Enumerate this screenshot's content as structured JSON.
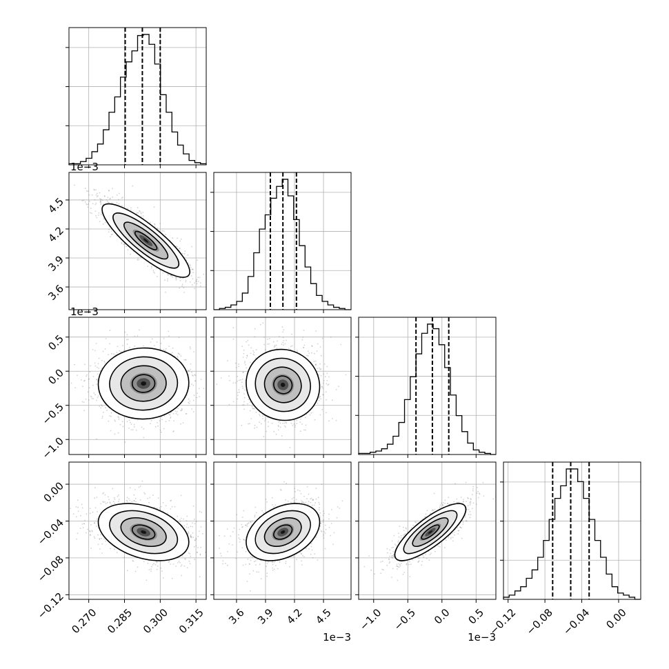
{
  "chart_data": {
    "type": "corner",
    "grid": true,
    "parameters": [
      {
        "index": 0,
        "ticks": [
          0.27,
          0.285,
          0.3,
          0.315
        ],
        "tick_labels": [
          "0.270",
          "0.285",
          "0.300",
          "0.315"
        ],
        "range": [
          0.2617,
          0.3193
        ],
        "offset_text": "",
        "label": ""
      },
      {
        "index": 1,
        "ticks": [
          3.6,
          3.9,
          4.2,
          4.5
        ],
        "tick_labels": [
          "3.6",
          "3.9",
          "4.2",
          "4.5"
        ],
        "range": [
          3.365,
          4.785
        ],
        "offset_text": "1e−3",
        "label": ""
      },
      {
        "index": 2,
        "ticks": [
          -1.0,
          -0.5,
          0.0,
          0.5
        ],
        "tick_labels": [
          "−1.0",
          "−0.5",
          "0.0",
          "0.5"
        ],
        "range": [
          -1.22,
          0.79
        ],
        "offset_text": "1e−3",
        "label": ""
      },
      {
        "index": 3,
        "ticks": [
          -0.12,
          -0.08,
          -0.04,
          0.0
        ],
        "tick_labels": [
          "−0.12",
          "−0.08",
          "−0.04",
          "0.00"
        ],
        "range": [
          -0.125,
          0.024
        ],
        "offset_text": "",
        "label": ""
      }
    ],
    "diagonal_histograms": [
      {
        "param": 0,
        "quantiles": [
          0.2853,
          0.2925,
          0.3
        ],
        "bin_edges": [
          0.2617,
          0.2641,
          0.2665,
          0.2689,
          0.2713,
          0.2737,
          0.2761,
          0.2785,
          0.2809,
          0.2833,
          0.2857,
          0.2881,
          0.2905,
          0.2929,
          0.2953,
          0.2977,
          0.3001,
          0.3025,
          0.3049,
          0.3073,
          0.3097,
          0.3121,
          0.3145,
          0.3169,
          0.3193
        ],
        "counts": [
          0.5,
          0.5,
          1.5,
          3,
          6,
          9.5,
          16,
          24,
          31,
          40,
          47,
          52,
          59,
          59.5,
          55,
          46,
          32,
          24,
          15,
          9,
          5,
          2,
          1,
          0.5
        ]
      },
      {
        "param": 1,
        "quantiles": [
          3.95,
          4.08,
          4.22
        ],
        "bin_edges": [
          3.365,
          3.424,
          3.483,
          3.542,
          3.601,
          3.66,
          3.719,
          3.778,
          3.837,
          3.896,
          3.955,
          4.014,
          4.073,
          4.132,
          4.191,
          4.25,
          4.309,
          4.368,
          4.427,
          4.486,
          4.545,
          4.604,
          4.663,
          4.722,
          4.785
        ],
        "counts": [
          0,
          0.5,
          1,
          2,
          3.5,
          7,
          14,
          24,
          34,
          40,
          47,
          52,
          55,
          48,
          38,
          27,
          18,
          11,
          6,
          3.5,
          2,
          1,
          0.5,
          0
        ]
      },
      {
        "param": 2,
        "quantiles": [
          -0.38,
          -0.14,
          0.1
        ],
        "bin_edges": [
          -1.22,
          -1.136,
          -1.052,
          -0.968,
          -0.884,
          -0.8,
          -0.716,
          -0.632,
          -0.548,
          -0.464,
          -0.38,
          -0.296,
          -0.212,
          -0.128,
          -0.044,
          0.04,
          0.124,
          0.208,
          0.292,
          0.376,
          0.46,
          0.544,
          0.628,
          0.712,
          0.79
        ],
        "counts": [
          0.5,
          0.5,
          1,
          1.5,
          2.5,
          4.5,
          8,
          14,
          24,
          34,
          44,
          53,
          57,
          55,
          48,
          38,
          26,
          17,
          10,
          5,
          2,
          1,
          0.5,
          0
        ]
      },
      {
        "param": 3,
        "quantiles": [
          -0.0716,
          -0.052,
          -0.032
        ],
        "bin_edges": [
          -0.125,
          -0.1188,
          -0.1126,
          -0.1064,
          -0.1002,
          -0.094,
          -0.0878,
          -0.0816,
          -0.0754,
          -0.0692,
          -0.063,
          -0.0568,
          -0.0506,
          -0.0444,
          -0.0382,
          -0.032,
          -0.0258,
          -0.0196,
          -0.0134,
          -0.0072,
          -0.001,
          0.0052,
          0.0114,
          0.0176,
          0.024
        ],
        "counts": [
          0.5,
          1,
          2,
          3,
          5,
          7,
          10,
          14,
          19,
          24,
          27,
          31,
          31,
          28,
          24,
          19,
          14,
          10,
          6,
          3,
          1.5,
          1,
          0.5,
          0
        ]
      }
    ],
    "joint_panels": [
      {
        "x_param": 0,
        "y_param": 1,
        "center": [
          0.294,
          4.08
        ],
        "sigma": [
          0.0092,
          0.19
        ],
        "correlation": -0.85
      },
      {
        "x_param": 0,
        "y_param": 2,
        "center": [
          0.293,
          -0.18
        ],
        "sigma": [
          0.0095,
          0.26
        ],
        "correlation": 0.02
      },
      {
        "x_param": 1,
        "y_param": 2,
        "center": [
          4.08,
          -0.2
        ],
        "sigma": [
          0.19,
          0.26
        ],
        "correlation": -0.05
      },
      {
        "x_param": 0,
        "y_param": 3,
        "center": [
          0.293,
          -0.052
        ],
        "sigma": [
          0.0095,
          0.0155
        ],
        "correlation": -0.35
      },
      {
        "x_param": 1,
        "y_param": 3,
        "center": [
          4.08,
          -0.052
        ],
        "sigma": [
          0.19,
          0.0155
        ],
        "correlation": 0.35
      },
      {
        "x_param": 2,
        "y_param": 3,
        "center": [
          -0.17,
          -0.052
        ],
        "sigma": [
          0.26,
          0.0155
        ],
        "correlation": 0.8
      }
    ],
    "contour_levels_sigma": [
      0.5,
      1.0,
      1.5,
      2.0
    ]
  }
}
